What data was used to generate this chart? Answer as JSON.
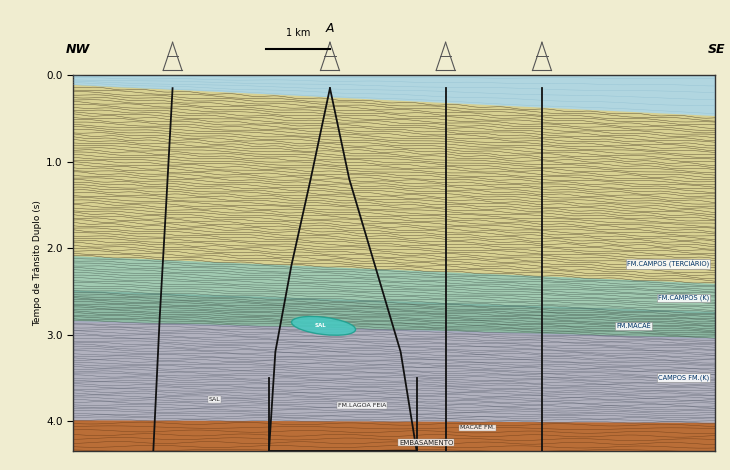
{
  "bg_color": "#f0edd0",
  "plot_bg": "#e8e4b8",
  "border_color": "#333333",
  "ylabel": "Tempo de Trânsito Duplo (s)",
  "yticks": [
    0.0,
    1.0,
    2.0,
    3.0,
    4.0
  ],
  "ylim": [
    4.35,
    0.0
  ],
  "xlim": [
    0,
    10
  ],
  "water_color": "#a8d4e8",
  "tertiary_color": "#d8d090",
  "campos_k_color": "#90c4b0",
  "macae_color": "#78b0a0",
  "preK_color": "#a8a8c0",
  "basement_color": "#b86830",
  "salt_blob_color": "#50c8c8",
  "line_color": "#111111",
  "ann_color": "#003366"
}
